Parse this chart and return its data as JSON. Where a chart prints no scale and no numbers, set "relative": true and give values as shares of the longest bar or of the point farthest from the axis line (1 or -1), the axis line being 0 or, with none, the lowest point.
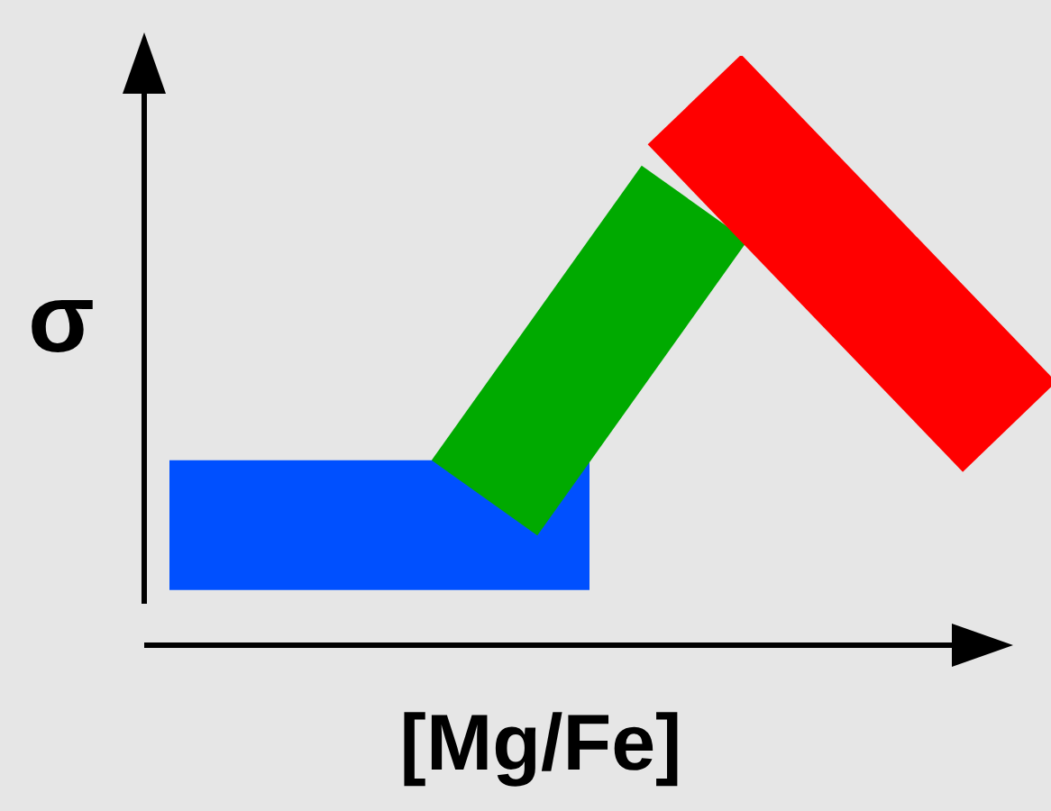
{
  "chart_data": {
    "type": "line",
    "relative": true,
    "xlabel": "[Mg/Fe]",
    "ylabel": "σ",
    "legend": false,
    "marker": "none",
    "categories": [
      null,
      null,
      null,
      null,
      null,
      null,
      null,
      null,
      null
    ],
    "series": [
      {
        "color": "#0050ff",
        "values": [
          0.22,
          0.22,
          0.22,
          0.22,
          0.22,
          null,
          null,
          null,
          null
        ]
      },
      {
        "color": "#00aa00",
        "values": [
          null,
          null,
          null,
          0.27,
          null,
          0.81,
          null,
          null,
          null
        ]
      },
      {
        "color": "#ff0000",
        "values": [
          null,
          null,
          null,
          null,
          null,
          1.0,
          null,
          null,
          0.4
        ]
      }
    ]
  }
}
